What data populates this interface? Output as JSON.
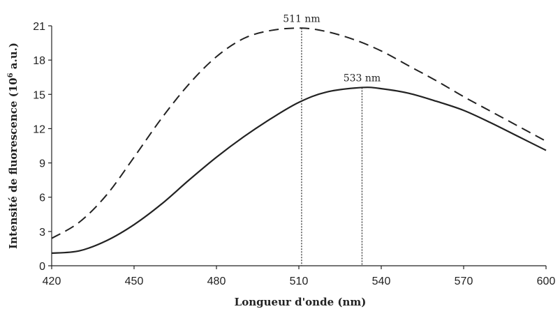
{
  "chart_data": {
    "type": "line",
    "xlabel": "Longueur d'onde (nm)",
    "ylabel_main": "Intensité de fluorescence (10",
    "ylabel_exp": "6",
    "ylabel_unit": " a.u.)",
    "xlim": [
      420,
      600
    ],
    "ylim": [
      0,
      21
    ],
    "xticks": [
      420,
      450,
      480,
      510,
      540,
      570,
      600
    ],
    "yticks": [
      0,
      3,
      6,
      9,
      12,
      15,
      18,
      21
    ],
    "grid": false,
    "series": [
      {
        "style": "dashed",
        "x": [
          420,
          430,
          440,
          450,
          460,
          470,
          480,
          490,
          500,
          511,
          520,
          530,
          540,
          550,
          560,
          570,
          580,
          590,
          600
        ],
        "y": [
          2.4,
          3.8,
          6.2,
          9.5,
          12.9,
          15.9,
          18.3,
          19.9,
          20.6,
          20.8,
          20.5,
          19.8,
          18.8,
          17.5,
          16.2,
          14.8,
          13.5,
          12.2,
          10.9
        ]
      },
      {
        "style": "solid",
        "x": [
          420,
          430,
          440,
          450,
          460,
          470,
          480,
          490,
          500,
          510,
          520,
          533,
          540,
          550,
          560,
          570,
          580,
          590,
          600
        ],
        "y": [
          1.1,
          1.3,
          2.2,
          3.6,
          5.4,
          7.5,
          9.5,
          11.3,
          12.9,
          14.3,
          15.2,
          15.6,
          15.5,
          15.1,
          14.4,
          13.6,
          12.5,
          11.3,
          10.1
        ]
      }
    ],
    "annotations": [
      {
        "label": "511 nm",
        "x": 511,
        "y": 20.8,
        "series_style": "dashed"
      },
      {
        "label": "533 nm",
        "x": 533,
        "y": 15.6,
        "series_style": "solid"
      }
    ]
  }
}
